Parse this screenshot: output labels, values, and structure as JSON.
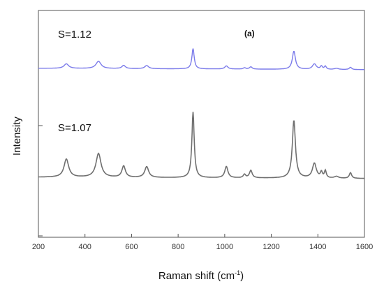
{
  "chart_data": {
    "type": "line",
    "panel_label": "(a)",
    "xlabel_main": "Raman shift (cm",
    "xlabel_sup": "-1",
    "xlabel_close": ")",
    "ylabel": "Intensity",
    "xlim": [
      200,
      1600
    ],
    "ylim": [
      0,
      100
    ],
    "xticks": [
      "200",
      "400",
      "600",
      "800",
      "1000",
      "1200",
      "1400",
      "1600"
    ],
    "grid": false,
    "series": [
      {
        "name": "S=1.12",
        "color": "#7b7bea",
        "baseline": 74.5,
        "peaks": [
          {
            "x": 320,
            "h": 2.0,
            "w": 12
          },
          {
            "x": 458,
            "h": 3.2,
            "w": 13
          },
          {
            "x": 566,
            "h": 1.4,
            "w": 9
          },
          {
            "x": 665,
            "h": 1.4,
            "w": 10
          },
          {
            "x": 864,
            "h": 9.0,
            "w": 6
          },
          {
            "x": 1007,
            "h": 1.4,
            "w": 8
          },
          {
            "x": 1085,
            "h": 0.6,
            "w": 6
          },
          {
            "x": 1112,
            "h": 1.0,
            "w": 7
          },
          {
            "x": 1297,
            "h": 8.0,
            "w": 8
          },
          {
            "x": 1385,
            "h": 2.4,
            "w": 10
          },
          {
            "x": 1415,
            "h": 1.4,
            "w": 5
          },
          {
            "x": 1432,
            "h": 1.4,
            "w": 5
          },
          {
            "x": 1480,
            "h": 0.5,
            "w": 10
          },
          {
            "x": 1540,
            "h": 1.0,
            "w": 6
          }
        ]
      },
      {
        "name": "S=1.07",
        "color": "#6f6f6f",
        "baseline": 26.5,
        "peaks": [
          {
            "x": 320,
            "h": 8.0,
            "w": 12
          },
          {
            "x": 458,
            "h": 10.5,
            "w": 13
          },
          {
            "x": 566,
            "h": 5.0,
            "w": 9
          },
          {
            "x": 665,
            "h": 4.8,
            "w": 10
          },
          {
            "x": 864,
            "h": 29.0,
            "w": 6
          },
          {
            "x": 1007,
            "h": 5.0,
            "w": 8
          },
          {
            "x": 1085,
            "h": 1.5,
            "w": 6
          },
          {
            "x": 1112,
            "h": 3.3,
            "w": 7
          },
          {
            "x": 1297,
            "h": 25.5,
            "w": 8
          },
          {
            "x": 1385,
            "h": 6.5,
            "w": 10
          },
          {
            "x": 1415,
            "h": 2.5,
            "w": 5
          },
          {
            "x": 1432,
            "h": 3.2,
            "w": 5
          },
          {
            "x": 1480,
            "h": 0.8,
            "w": 10
          },
          {
            "x": 1540,
            "h": 2.5,
            "w": 6
          }
        ]
      }
    ],
    "series_labels": [
      "S=1.12",
      "S=1.07"
    ]
  }
}
